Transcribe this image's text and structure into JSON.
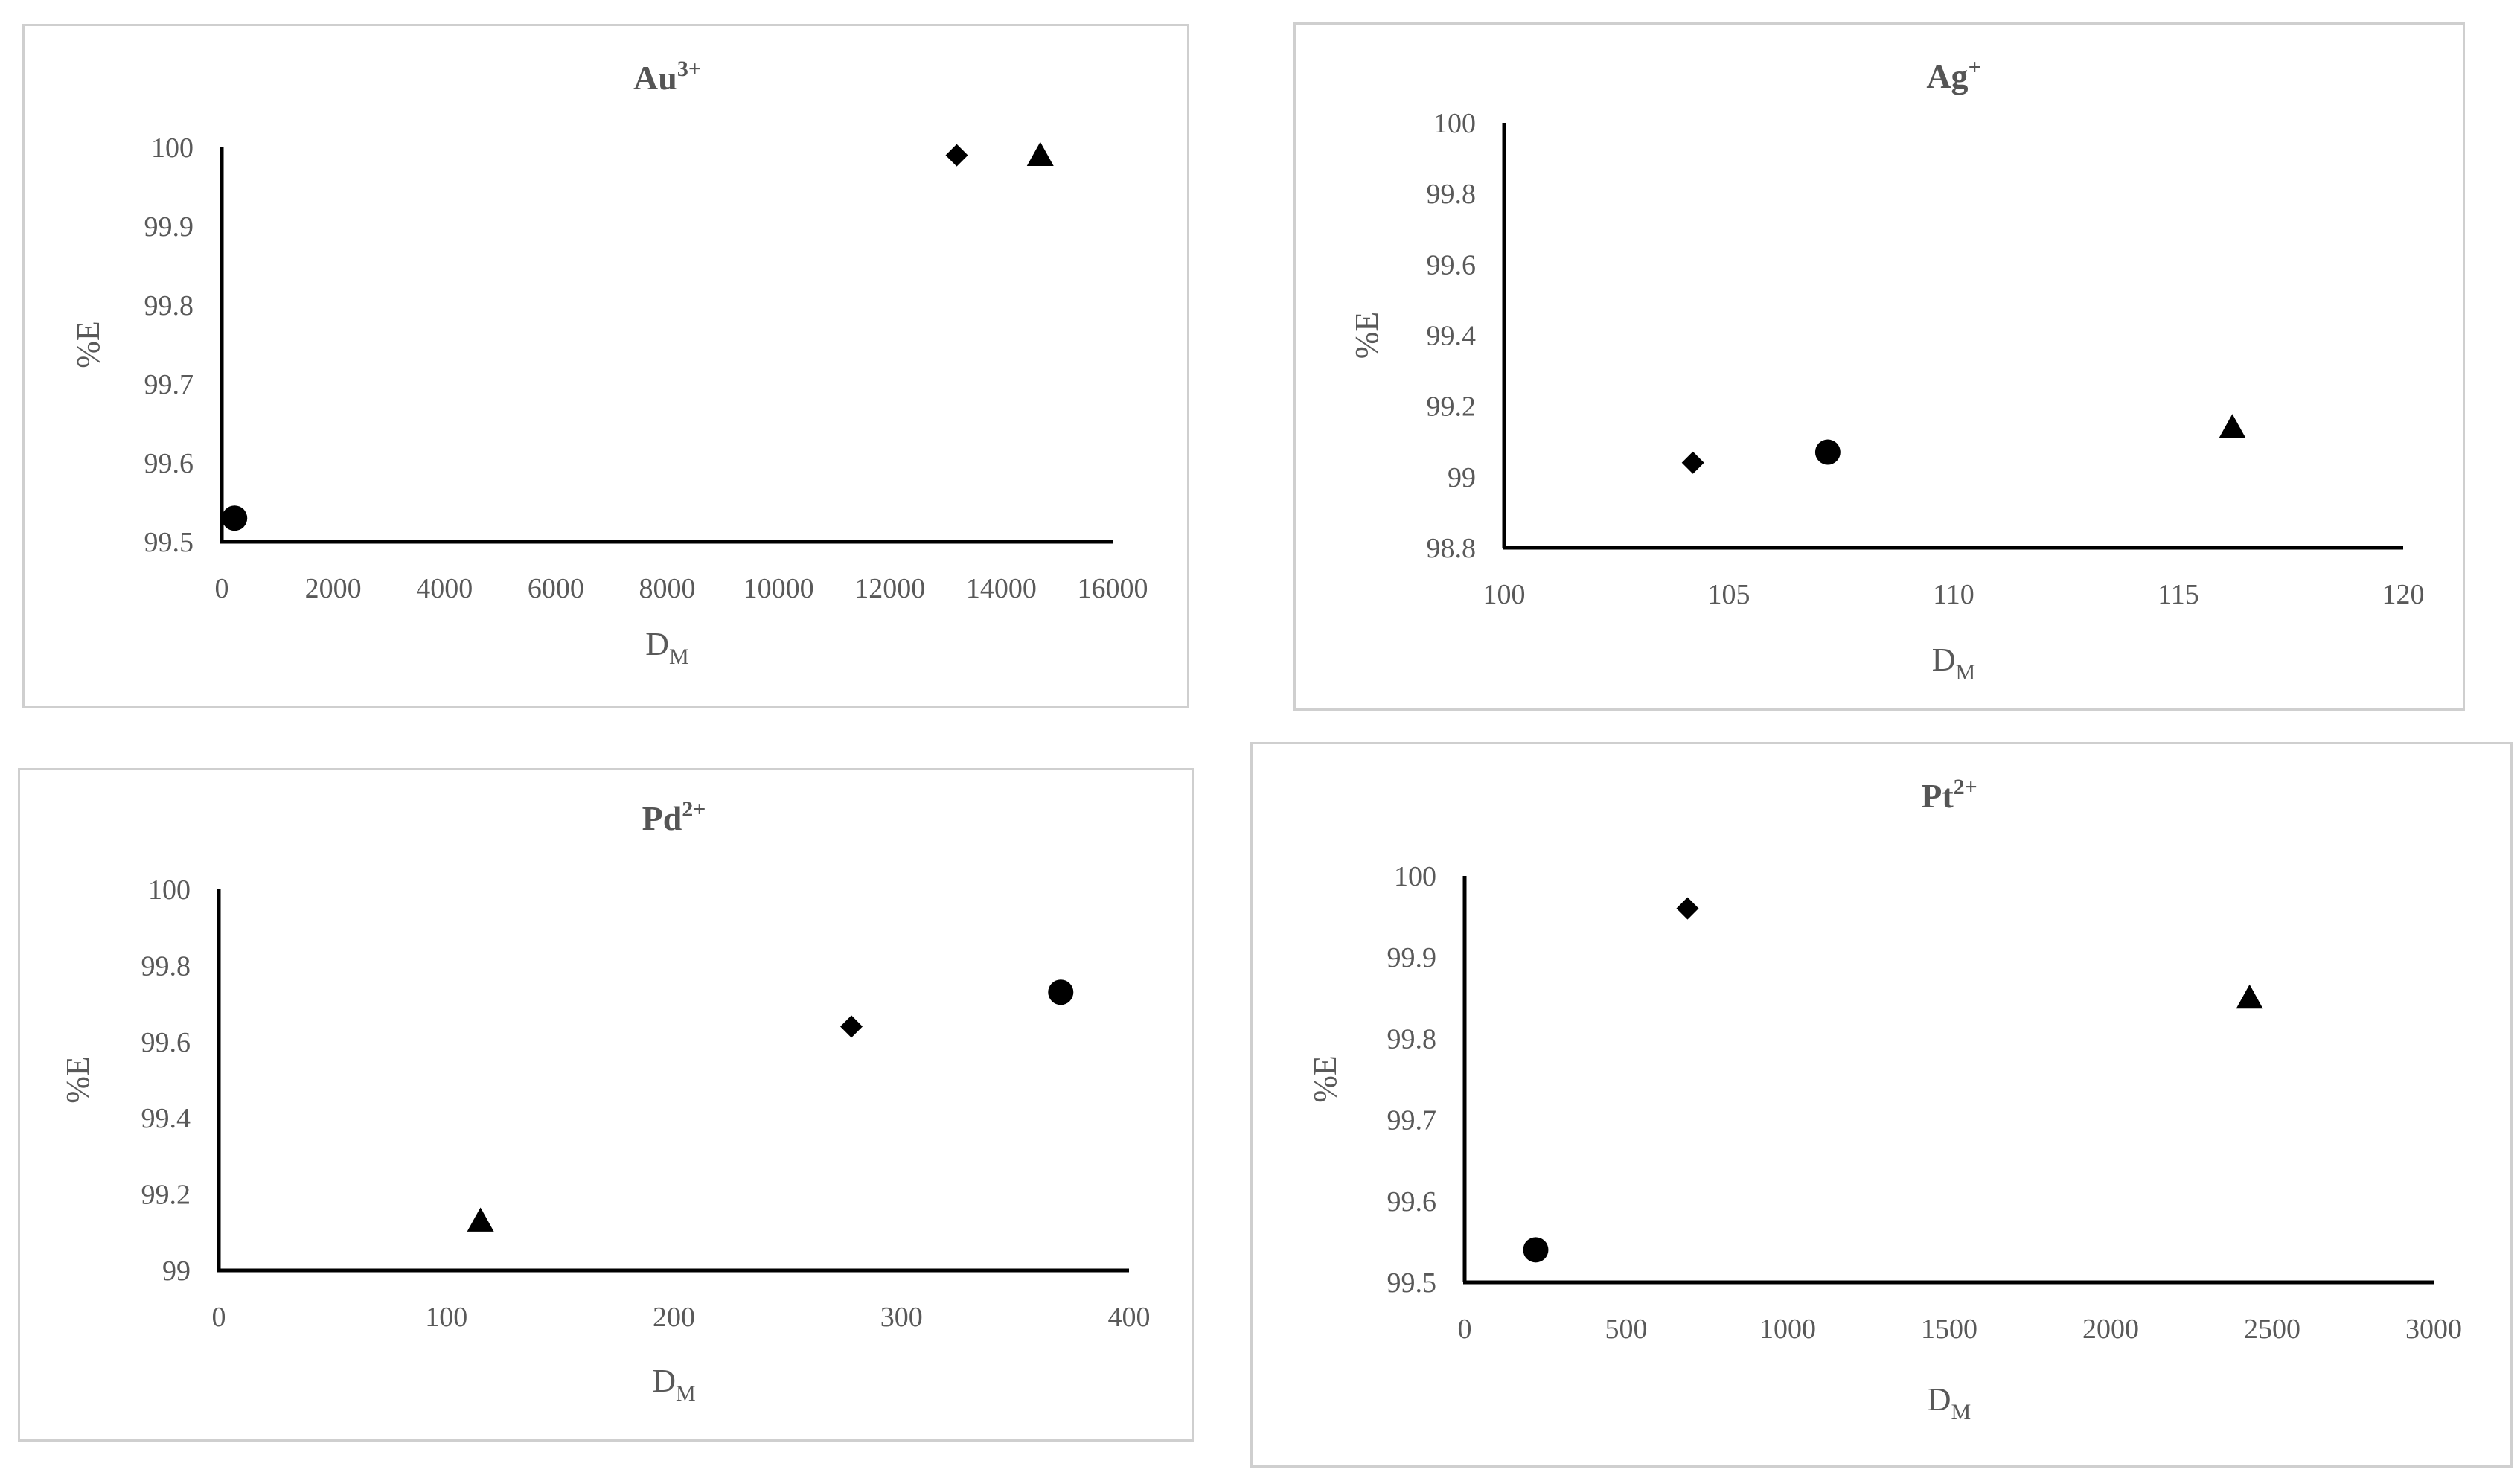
{
  "chart_data": [
    {
      "type": "scatter",
      "title": {
        "base": "Au",
        "sup": "3+"
      },
      "xlabel": {
        "base": "D",
        "sub": "M"
      },
      "ylabel": "%E",
      "xlim": [
        0,
        16000
      ],
      "ylim": [
        99.5,
        100
      ],
      "xticks": [
        "0",
        "2000",
        "4000",
        "6000",
        "8000",
        "10000",
        "12000",
        "14000",
        "16000"
      ],
      "yticks": [
        "99.5",
        "99.6",
        "99.7",
        "99.8",
        "99.9",
        "100"
      ],
      "grid": false,
      "legend": "none",
      "points": [
        {
          "x": 230,
          "y": 99.53,
          "marker": "circle"
        },
        {
          "x": 13200,
          "y": 99.99,
          "marker": "diamond"
        },
        {
          "x": 14700,
          "y": 99.99,
          "marker": "triangle"
        }
      ]
    },
    {
      "type": "scatter",
      "title": {
        "base": "Ag",
        "sup": "+"
      },
      "xlabel": {
        "base": "D",
        "sub": "M"
      },
      "ylabel": "%E",
      "xlim": [
        100,
        120
      ],
      "ylim": [
        98.8,
        100
      ],
      "xticks": [
        "100",
        "105",
        "110",
        "115",
        "120"
      ],
      "yticks": [
        "98.8",
        "99",
        "99.2",
        "99.4",
        "99.6",
        "99.8",
        "100"
      ],
      "grid": false,
      "legend": "none",
      "points": [
        {
          "x": 104.2,
          "y": 99.04,
          "marker": "diamond"
        },
        {
          "x": 107.2,
          "y": 99.07,
          "marker": "circle"
        },
        {
          "x": 116.2,
          "y": 99.14,
          "marker": "triangle"
        }
      ]
    },
    {
      "type": "scatter",
      "title": {
        "base": "Pd",
        "sup": "2+"
      },
      "xlabel": {
        "base": "D",
        "sub": "M"
      },
      "ylabel": "%E",
      "xlim": [
        0,
        400
      ],
      "ylim": [
        99,
        100
      ],
      "xticks": [
        "0",
        "100",
        "200",
        "300",
        "400"
      ],
      "yticks": [
        "99",
        "99.2",
        "99.4",
        "99.6",
        "99.8",
        "100"
      ],
      "grid": false,
      "legend": "none",
      "points": [
        {
          "x": 115,
          "y": 99.13,
          "marker": "triangle"
        },
        {
          "x": 278,
          "y": 99.64,
          "marker": "diamond"
        },
        {
          "x": 370,
          "y": 99.73,
          "marker": "circle"
        }
      ]
    },
    {
      "type": "scatter",
      "title": {
        "base": "Pt",
        "sup": "2+"
      },
      "xlabel": {
        "base": "D",
        "sub": "M"
      },
      "ylabel": "%E",
      "xlim": [
        0,
        3000
      ],
      "ylim": [
        99.5,
        100
      ],
      "xticks": [
        "0",
        "500",
        "1000",
        "1500",
        "2000",
        "2500",
        "3000"
      ],
      "yticks": [
        "99.5",
        "99.6",
        "99.7",
        "99.8",
        "99.9",
        "100"
      ],
      "grid": false,
      "legend": "none",
      "points": [
        {
          "x": 220,
          "y": 99.54,
          "marker": "circle"
        },
        {
          "x": 690,
          "y": 99.96,
          "marker": "diamond"
        },
        {
          "x": 2430,
          "y": 99.85,
          "marker": "triangle"
        }
      ]
    }
  ]
}
